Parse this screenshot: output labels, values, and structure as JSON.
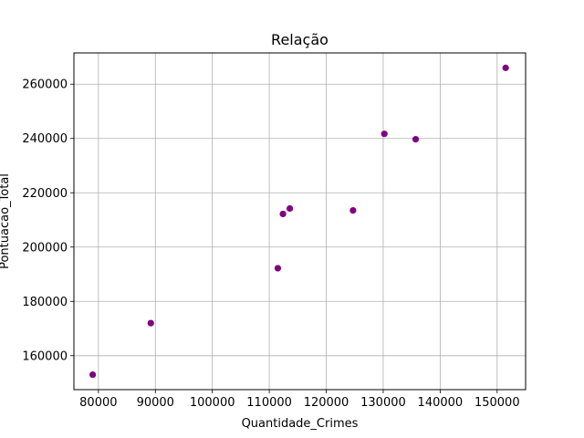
{
  "chart_data": {
    "type": "scatter",
    "title": "Relação",
    "xlabel": "Quantidade_Crimes",
    "ylabel": "Pontuacao_Total",
    "xlim": [
      75700,
      155000
    ],
    "ylim": [
      147500,
      271500
    ],
    "xticks": [
      80000,
      90000,
      100000,
      110000,
      120000,
      130000,
      140000,
      150000
    ],
    "yticks": [
      160000,
      180000,
      200000,
      220000,
      240000,
      260000
    ],
    "grid": true,
    "legend": "none",
    "series": [
      {
        "color": "#800080",
        "points": [
          {
            "x": 79000,
            "y": 153000
          },
          {
            "x": 89200,
            "y": 172000
          },
          {
            "x": 111500,
            "y": 192200
          },
          {
            "x": 112400,
            "y": 212200
          },
          {
            "x": 113600,
            "y": 214200
          },
          {
            "x": 124700,
            "y": 213500
          },
          {
            "x": 130200,
            "y": 241700
          },
          {
            "x": 135700,
            "y": 239700
          },
          {
            "x": 151500,
            "y": 266000
          }
        ]
      }
    ]
  }
}
